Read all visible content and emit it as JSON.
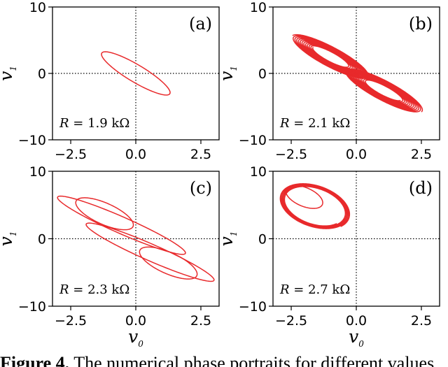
{
  "chart_data": [
    {
      "type": "line",
      "panel_label": "(a)",
      "annotation": "R = 1.9 kΩ",
      "xlabel": "",
      "ylabel": "v1",
      "xlim": [
        -3.2,
        3.2
      ],
      "ylim": [
        -10,
        10
      ],
      "xticks": [
        "−2.5",
        "0.0",
        "2.5"
      ],
      "yticks": [
        "−10",
        "0",
        "10"
      ],
      "color": "#e8292b",
      "grid": false,
      "zero_lines": "dotted",
      "series": [
        {
          "loops": [
            {
              "cx": 0.0,
              "cy": 0.0,
              "ax": -1.3,
              "ay": 3.1,
              "bx": 0.22,
              "by": 1.0,
              "turns": 1,
              "decay": 0,
              "spiral": 0,
              "drift": 0
            }
          ]
        }
      ]
    },
    {
      "type": "line",
      "panel_label": "(b)",
      "annotation": "R = 2.1 kΩ",
      "xlabel": "",
      "ylabel": "v1",
      "xlim": [
        -3.2,
        3.2
      ],
      "ylim": [
        -10,
        10
      ],
      "xticks": [
        "−2.5",
        "0.0",
        "2.5"
      ],
      "yticks": [
        "−10",
        "0",
        "10"
      ],
      "color": "#e8292b",
      "grid": false,
      "zero_lines": "dotted",
      "series": [
        {
          "loops": [
            {
              "cx": -1.0,
              "cy": 2.5,
              "ax": -1.45,
              "ay": 3.2,
              "bx": 0.35,
              "by": 0.95,
              "turns": 12,
              "decay": 0.55,
              "spiral": 0,
              "drift": 0
            },
            {
              "cx": 1.05,
              "cy": -2.6,
              "ax": 1.45,
              "ay": -3.2,
              "bx": 0.35,
              "by": 0.95,
              "turns": 12,
              "decay": 0.55,
              "spiral": 0,
              "drift": 0
            }
          ]
        }
      ]
    },
    {
      "type": "line",
      "panel_label": "(c)",
      "annotation": "R = 2.3 kΩ",
      "xlabel": "v0",
      "ylabel": "v1",
      "xlim": [
        -3.2,
        3.2
      ],
      "ylim": [
        -10,
        10
      ],
      "xticks": [
        "−2.5",
        "0.0",
        "2.5"
      ],
      "yticks": [
        "−10",
        "0",
        "10"
      ],
      "color": "#e8292b",
      "grid": false,
      "zero_lines": "dotted",
      "series": [
        {
          "loops": [
            {
              "cx": -0.55,
              "cy": 2.0,
              "ax": -2.45,
              "ay": 4.2,
              "bx": 0.2,
              "by": 1.0,
              "turns": 1,
              "decay": 0,
              "spiral": 0,
              "drift": 0
            },
            {
              "cx": 0.55,
              "cy": -2.0,
              "ax": 2.45,
              "ay": -4.2,
              "bx": 0.2,
              "by": 1.0,
              "turns": 1,
              "decay": 0,
              "spiral": 0,
              "drift": 0
            },
            {
              "cx": -1.2,
              "cy": 3.7,
              "ax": -1.05,
              "ay": 2.1,
              "bx": 0.35,
              "by": 1.1,
              "turns": 1,
              "decay": 0,
              "spiral": 0,
              "drift": 0
            },
            {
              "cx": 1.25,
              "cy": -3.6,
              "ax": 1.05,
              "ay": -2.1,
              "bx": 0.35,
              "by": 1.1,
              "turns": 1,
              "decay": 0,
              "spiral": 0,
              "drift": 0
            }
          ]
        }
      ]
    },
    {
      "type": "line",
      "panel_label": "(d)",
      "annotation": "R = 2.7 kΩ",
      "xlabel": "v0",
      "ylabel": "v1",
      "xlim": [
        -3.2,
        3.2
      ],
      "ylim": [
        -10,
        10
      ],
      "xticks": [
        "−2.5",
        "0.0",
        "2.5"
      ],
      "yticks": [
        "−10",
        "0",
        "10"
      ],
      "color": "#e8292b",
      "grid": false,
      "zero_lines": "dotted",
      "series": [
        {
          "loops": [
            {
              "cx": -1.6,
              "cy": 4.8,
              "ax": 1.0,
              "ay": -3.0,
              "bx": 0.9,
              "by": 1.6,
              "turns": 5,
              "decay": 0.15,
              "spiral": 0,
              "drift": 0
            },
            {
              "cx": -2.0,
              "cy": 6.2,
              "ax": -0.55,
              "ay": 1.6,
              "bx": 0.45,
              "by": 0.6,
              "turns": 1,
              "decay": 0,
              "spiral": 0,
              "drift": 0
            }
          ]
        }
      ]
    }
  ],
  "caption": {
    "figure_number": "Figure 4.",
    "text": "The numerical phase portraits for different values"
  }
}
